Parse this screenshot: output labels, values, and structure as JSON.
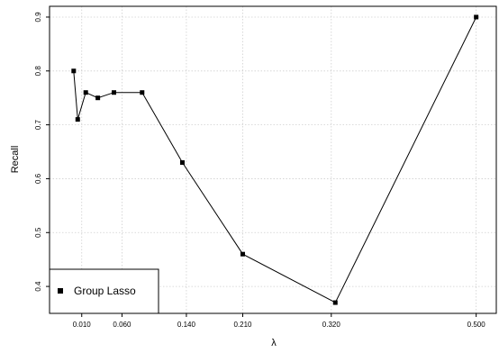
{
  "chart_data": {
    "type": "line",
    "title": "",
    "xlabel": "λ",
    "ylabel": "Recall",
    "xlim": [
      -0.03,
      0.525
    ],
    "ylim": [
      0.35,
      0.92
    ],
    "x_ticks": [
      0.01,
      0.06,
      0.14,
      0.21,
      0.32,
      0.5
    ],
    "x_tick_labels": [
      "0.010",
      "0.060",
      "0.140",
      "0.210",
      "0.320",
      "0.500"
    ],
    "y_ticks": [
      0.4,
      0.5,
      0.6,
      0.7,
      0.8,
      0.9
    ],
    "y_tick_labels": [
      "0.4",
      "0.5",
      "0.6",
      "0.7",
      "0.8",
      "0.9"
    ],
    "grid": true,
    "legend_position": "bottom-left",
    "series": [
      {
        "name": "Group Lasso",
        "marker": "square",
        "color": "#000000",
        "x": [
          0.0,
          0.005,
          0.015,
          0.03,
          0.05,
          0.085,
          0.135,
          0.21,
          0.325,
          0.5
        ],
        "y": [
          0.8,
          0.71,
          0.76,
          0.75,
          0.76,
          0.76,
          0.63,
          0.46,
          0.37,
          0.9
        ]
      }
    ]
  }
}
